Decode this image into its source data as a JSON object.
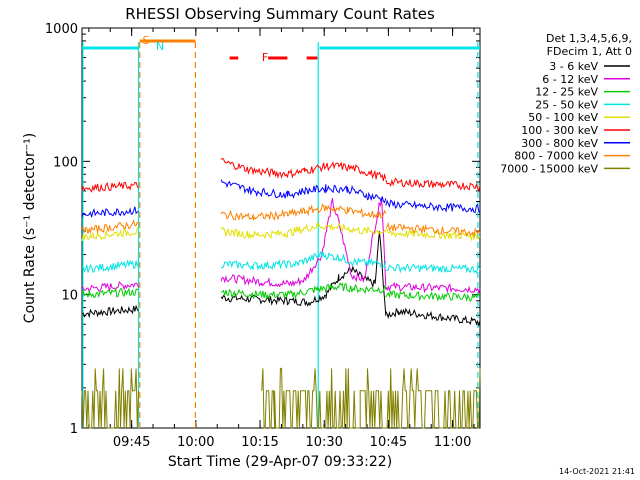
{
  "chart_data": {
    "type": "line",
    "title": "RHESSI Observing Summary Count Rates",
    "xlabel": "Start Time (29-Apr-07 09:33:22)",
    "ylabel": "Count Rate (s⁻¹ detector⁻¹)",
    "yscale": "log",
    "ylim": [
      1,
      1000
    ],
    "xlim_minutes": [
      0,
      93
    ],
    "x_ticks": [
      {
        "label": "09:45",
        "minute": 11.6
      },
      {
        "label": "10:00",
        "minute": 26.6
      },
      {
        "label": "10:15",
        "minute": 41.6
      },
      {
        "label": "10:30",
        "minute": 56.6
      },
      {
        "label": "10:45",
        "minute": 71.6
      },
      {
        "label": "11:00",
        "minute": 86.6
      }
    ],
    "y_ticks": [
      {
        "label": "1",
        "value": 1
      },
      {
        "label": "10",
        "value": 10
      },
      {
        "label": "100",
        "value": 100
      },
      {
        "label": "1000",
        "value": 1000
      }
    ],
    "legend_header": [
      "Det 1,3,4,5,6,9,",
      "FDecim 1, Att 0"
    ],
    "legend_position": "right",
    "series": [
      {
        "name": "3 - 6 keV",
        "color": "#000000",
        "segments": [
          {
            "x": [
              0,
              13.2
            ],
            "y": [
              7.2,
              7.8
            ]
          },
          {
            "x": [
              32.5,
              48,
              53,
              57,
              60,
              63,
              66,
              68.5,
              69.5,
              71
            ],
            "y": [
              9.5,
              9.0,
              8.8,
              10.0,
              13.5,
              15.5,
              13.0,
              12.0,
              30.0,
              7.0
            ]
          },
          {
            "x": [
              71,
              74,
              93
            ],
            "y": [
              7.0,
              7.5,
              6.2
            ]
          }
        ]
      },
      {
        "name": "6 - 12 keV",
        "color": "#e000e0",
        "segments": [
          {
            "x": [
              0,
              13.2
            ],
            "y": [
              11.0,
              12.0
            ]
          },
          {
            "x": [
              32.5,
              42,
              49,
              52,
              56,
              58.5,
              60,
              63,
              66,
              68,
              70,
              71
            ],
            "y": [
              13.5,
              12.5,
              12.0,
              13.0,
              20.0,
              50.0,
              35.0,
              14.0,
              13.0,
              28.0,
              55.0,
              12.0
            ]
          },
          {
            "x": [
              71,
              93
            ],
            "y": [
              11.5,
              11.0
            ]
          }
        ]
      },
      {
        "name": "12 - 25 keV",
        "color": "#00cc00",
        "segments": [
          {
            "x": [
              0,
              13.2
            ],
            "y": [
              10.0,
              10.5
            ]
          },
          {
            "x": [
              32.5,
              42,
              49,
              55,
              60,
              65,
              71
            ],
            "y": [
              10.5,
              10.0,
              10.0,
              11.0,
              11.5,
              11.0,
              11.0
            ]
          },
          {
            "x": [
              71,
              93
            ],
            "y": [
              10.0,
              9.5
            ]
          }
        ]
      },
      {
        "name": "25 - 50 keV",
        "color": "#00e5e5",
        "segments": [
          {
            "x": [
              0,
              13.2
            ],
            "y": [
              15.5,
              17.0
            ]
          },
          {
            "x": [
              32.5,
              40,
              50,
              56,
              60,
              64,
              71
            ],
            "y": [
              17.0,
              16.5,
              17.0,
              20.0,
              19.0,
              17.5,
              17.0
            ]
          },
          {
            "x": [
              71,
              93
            ],
            "y": [
              16.0,
              15.5
            ]
          }
        ]
      },
      {
        "name": "50 - 100 keV",
        "color": "#e0e000",
        "segments": [
          {
            "x": [
              0,
              13.2
            ],
            "y": [
              27.0,
              30.0
            ]
          },
          {
            "x": [
              32.5,
              40,
              48,
              55,
              60,
              66,
              71
            ],
            "y": [
              30.0,
              28.0,
              29.0,
              33.0,
              32.0,
              30.0,
              30.0
            ]
          },
          {
            "x": [
              71,
              93
            ],
            "y": [
              29.0,
              27.5
            ]
          }
        ]
      },
      {
        "name": "100 - 300 keV",
        "color": "#ff0000",
        "segments": [
          {
            "x": [
              0,
              13.2
            ],
            "y": [
              63.0,
              66.0
            ]
          },
          {
            "x": [
              32.5,
              40,
              48,
              52,
              57,
              60,
              64,
              69,
              71
            ],
            "y": [
              100.0,
              85.0,
              80.0,
              85.0,
              92.0,
              92.0,
              88.0,
              78.0,
              74.0
            ]
          },
          {
            "x": [
              71,
              80,
              93
            ],
            "y": [
              70.0,
              68.0,
              65.0
            ]
          }
        ]
      },
      {
        "name": "300 - 800 keV",
        "color": "#0000ff",
        "segments": [
          {
            "x": [
              0,
              13.2
            ],
            "y": [
              40.0,
              43.0
            ]
          },
          {
            "x": [
              32.5,
              40,
              48,
              52,
              57,
              62,
              67,
              71
            ],
            "y": [
              70.0,
              60.0,
              56.0,
              60.0,
              63.0,
              62.0,
              55.0,
              52.0
            ]
          },
          {
            "x": [
              71,
              80,
              93
            ],
            "y": [
              48.0,
              46.0,
              44.0
            ]
          }
        ]
      },
      {
        "name": "800 - 7000 keV",
        "color": "#ff8000",
        "segments": [
          {
            "x": [
              0,
              13.2
            ],
            "y": [
              30.0,
              34.0
            ]
          },
          {
            "x": [
              32.5,
              40,
              48,
              52,
              57,
              62,
              67,
              71
            ],
            "y": [
              40.0,
              38.0,
              40.0,
              42.0,
              45.0,
              43.0,
              40.0,
              40.0
            ]
          },
          {
            "x": [
              71,
              80,
              93
            ],
            "y": [
              32.0,
              31.0,
              29.0
            ]
          }
        ]
      },
      {
        "name": "7000 - 15000 keV",
        "color": "#808000",
        "segments": [
          {
            "x": [
              0,
              13.2
            ],
            "y": [
              1.0,
              1.9
            ]
          },
          {
            "x": [
              42,
              45,
              48,
              55,
              60,
              65,
              71
            ],
            "y": [
              1.0,
              1.9,
              1.0,
              1.9,
              2.8,
              1.9,
              1.0
            ]
          },
          {
            "x": [
              71,
              93
            ],
            "y": [
              1.0,
              1.9
            ]
          }
        ]
      }
    ],
    "annotations": [
      {
        "label": "S",
        "color": "#ff8000"
      },
      {
        "label": "N",
        "color": "#00e5e5"
      },
      {
        "label": "F",
        "color": "#ff0000"
      }
    ],
    "flag_bars": [
      {
        "color": "#00e5e5",
        "x": [
          0,
          13.2
        ]
      },
      {
        "color": "#ff8000",
        "x": [
          13.5,
          26.5
        ]
      },
      {
        "color": "#ff0000",
        "x": [
          34.5,
          36.5
        ]
      },
      {
        "color": "#ff0000",
        "x": [
          43.5,
          48
        ]
      },
      {
        "color": "#ff0000",
        "x": [
          52.5,
          55
        ]
      },
      {
        "color": "#00e5e5",
        "x": [
          55.5,
          93
        ]
      }
    ],
    "vlines": [
      {
        "x": 0.2,
        "color": "#00e5e5",
        "style": "solid"
      },
      {
        "x": 13.2,
        "color": "#00e5e5",
        "style": "solid"
      },
      {
        "x": 13.5,
        "color": "#ff8000",
        "style": "dashed"
      },
      {
        "x": 26.5,
        "color": "#ff8000",
        "style": "dashed"
      },
      {
        "x": 55.2,
        "color": "#00e5e5",
        "style": "solid"
      },
      {
        "x": 92.5,
        "color": "#00e5e5",
        "style": "dashed"
      }
    ],
    "timestamp": "14-Oct-2021 21:41"
  }
}
